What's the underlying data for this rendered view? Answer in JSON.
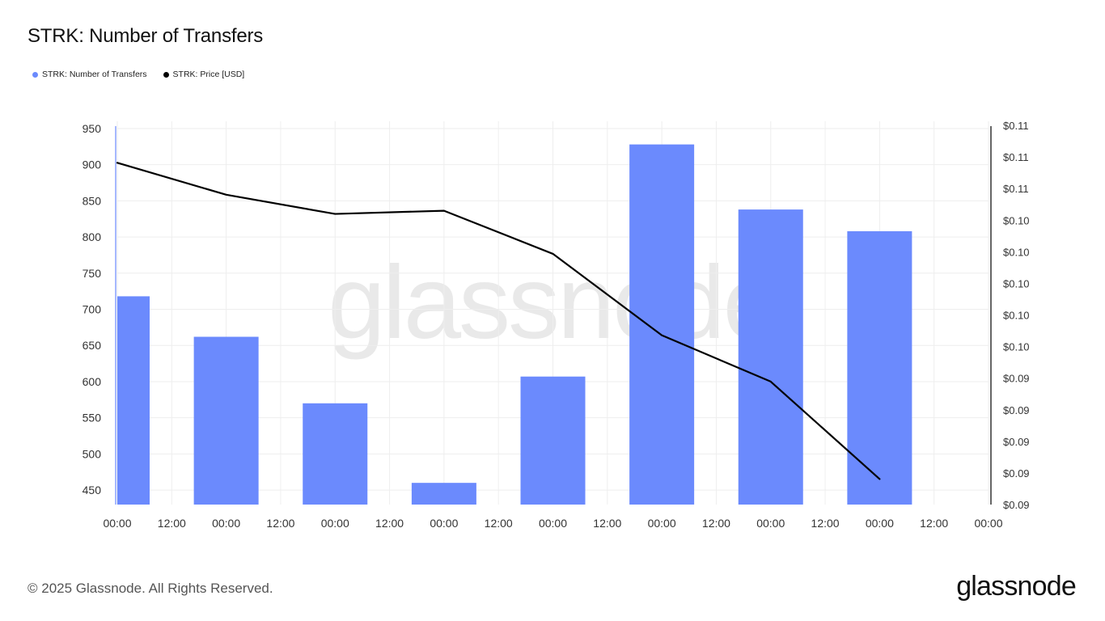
{
  "title": "STRK: Number of Transfers",
  "legend": [
    {
      "label": "STRK: Number of Transfers",
      "color": "#6b8afd"
    },
    {
      "label": "STRK: Price [USD]",
      "color": "#000000"
    }
  ],
  "watermark": "glassnode",
  "footer": {
    "copyright": "© 2025 Glassnode. All Rights Reserved.",
    "brand": "glassnode"
  },
  "colors": {
    "bars": "#6b8afd",
    "line": "#000000",
    "grid": "#eeeeee",
    "watermark": "#e9e9e9"
  },
  "chart_data": {
    "type": "bar",
    "grid": true,
    "legend_position": "top-left",
    "x_tick_labels": [
      "00:00",
      "12:00",
      "00:00",
      "12:00",
      "00:00",
      "12:00",
      "00:00",
      "12:00",
      "00:00",
      "12:00",
      "00:00",
      "12:00",
      "00:00",
      "12:00",
      "00:00",
      "12:00",
      "00:00"
    ],
    "y_left": {
      "ticks": [
        450,
        500,
        550,
        600,
        650,
        700,
        750,
        800,
        850,
        900,
        950
      ],
      "range": [
        430,
        960
      ]
    },
    "y_right": {
      "tick_labels": [
        "$0.09",
        "$0.09",
        "$0.09",
        "$0.09",
        "$0.09",
        "$0.10",
        "$0.10",
        "$0.10",
        "$0.10",
        "$0.10",
        "$0.11",
        "$0.11",
        "$0.11"
      ],
      "range": [
        0.085,
        0.109
      ]
    },
    "x_range_days": [
      0,
      8
    ],
    "series": [
      {
        "name": "STRK: Number of Transfers",
        "type": "bar",
        "axis": "left",
        "x_days": [
          0,
          1,
          2,
          3,
          4,
          5,
          6,
          7
        ],
        "values": [
          718,
          662,
          570,
          460,
          607,
          928,
          838,
          808
        ]
      },
      {
        "name": "STRK: Price [USD]",
        "type": "line",
        "axis": "right",
        "x_days": [
          0,
          1,
          2,
          3,
          4,
          5,
          6,
          7
        ],
        "values": [
          0.1064,
          0.1044,
          0.1032,
          0.1034,
          0.1007,
          0.0956,
          0.0927,
          0.0866
        ]
      }
    ]
  }
}
